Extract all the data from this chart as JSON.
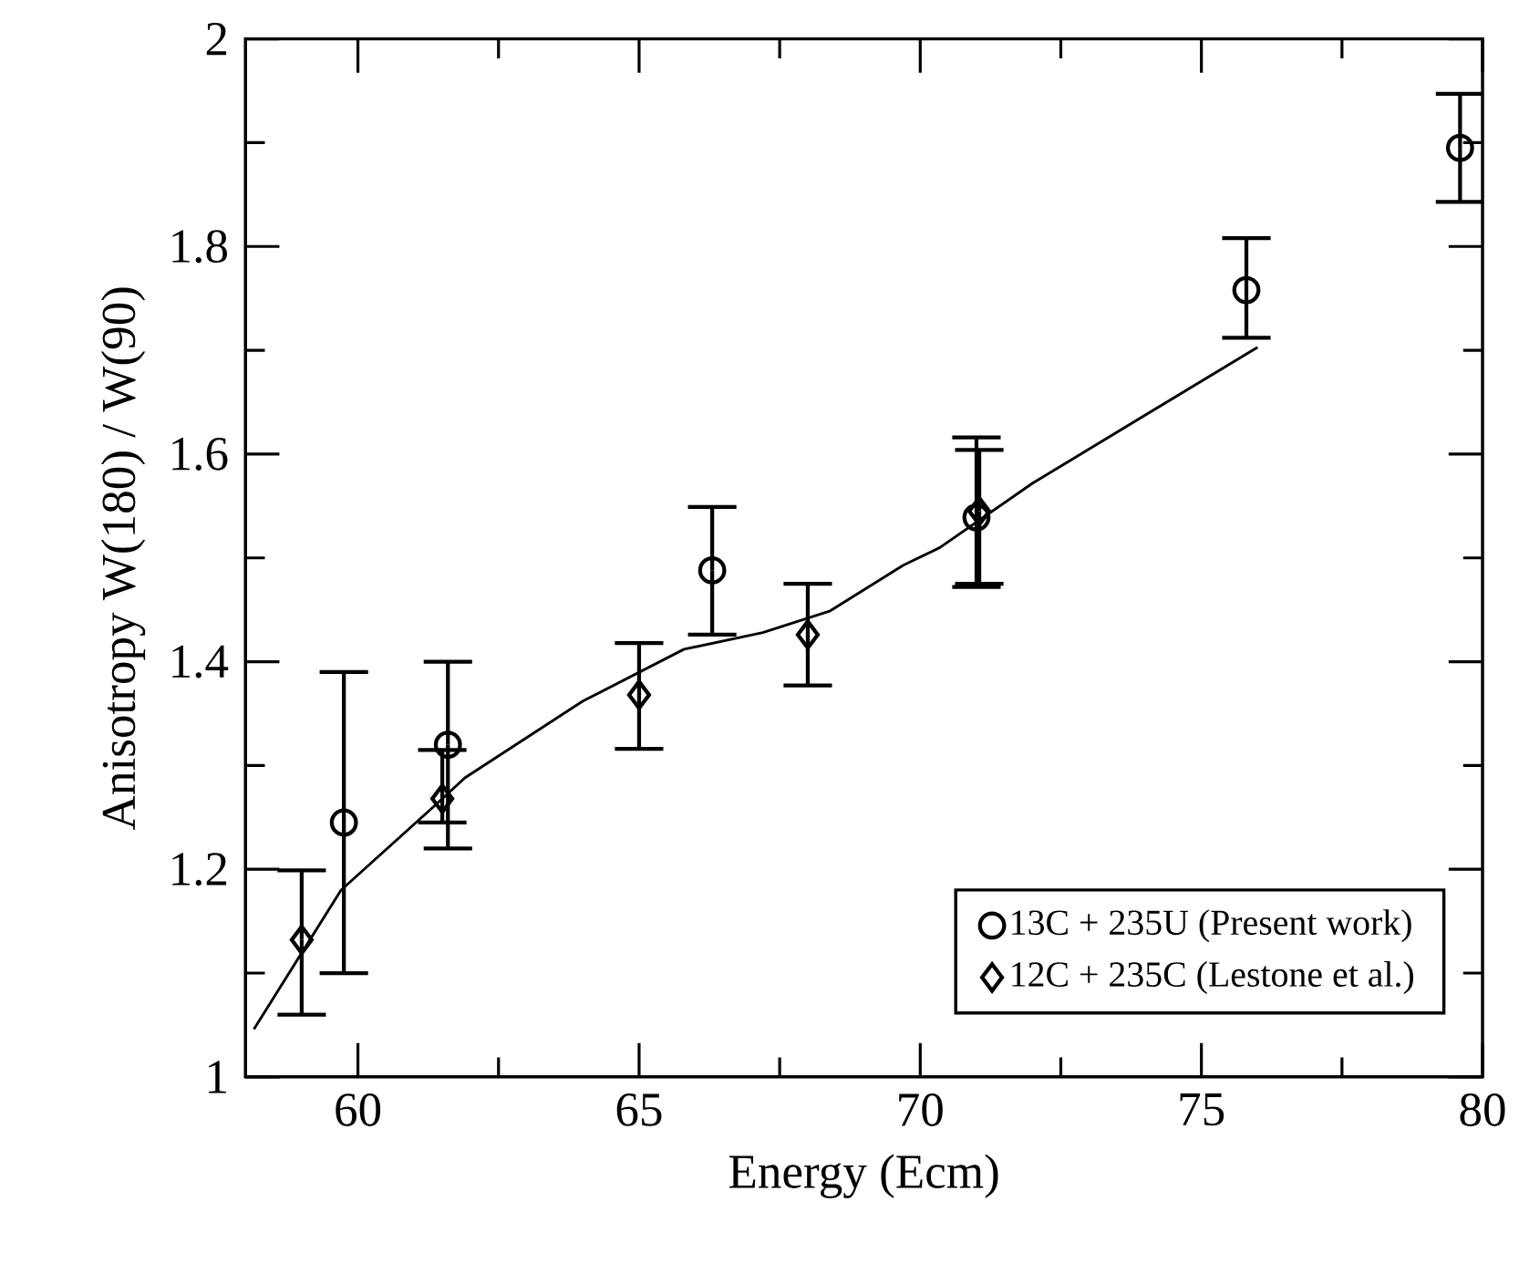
{
  "chart_data": {
    "type": "scatter",
    "xlabel": "Energy (Ecm)",
    "ylabel": "Anisotropy W(180) / W(90)",
    "xlim": [
      58,
      80
    ],
    "ylim": [
      1,
      2
    ],
    "xticks": [
      60,
      65,
      70,
      75,
      80
    ],
    "yticks": [
      1,
      1.2,
      1.4,
      1.6,
      1.8,
      2
    ],
    "grid": false,
    "legend": "bottom right",
    "series": [
      {
        "name": "13C + 235U (Present work)",
        "color": "#000000",
        "marker": "circle",
        "x": [
          59.75,
          61.6,
          66.3,
          71.0,
          75.8,
          79.6
        ],
        "values": [
          1.245,
          1.32,
          1.488,
          1.539,
          1.758,
          1.895
        ],
        "errors": [
          [
            1.1,
            1.39
          ],
          [
            1.22,
            1.4
          ],
          [
            1.426,
            1.549
          ],
          [
            1.472,
            1.616
          ],
          [
            1.712,
            1.808
          ],
          [
            1.843,
            1.947
          ]
        ]
      },
      {
        "name": "12C + 235C (Lestone et al.)",
        "color": "#000000",
        "marker": "diamond",
        "x": [
          59.0,
          61.5,
          65.0,
          68.0,
          71.05
        ],
        "values": [
          1.132,
          1.268,
          1.368,
          1.426,
          1.545
        ],
        "errors": [
          [
            1.06,
            1.199
          ],
          [
            1.245,
            1.315
          ],
          [
            1.316,
            1.418
          ],
          [
            1.377,
            1.475
          ],
          [
            1.475,
            1.604
          ]
        ]
      },
      {
        "type": "line",
        "color": "#000000",
        "marker": "none",
        "x": [
          58.15,
          59.7,
          61.4,
          61.9,
          64.0,
          65.8,
          67.2,
          68.4,
          69.7,
          70.35,
          72.0,
          76.0
        ],
        "values": [
          1.046,
          1.18,
          1.263,
          1.288,
          1.362,
          1.412,
          1.428,
          1.449,
          1.493,
          1.51,
          1.572,
          1.703
        ]
      }
    ]
  }
}
